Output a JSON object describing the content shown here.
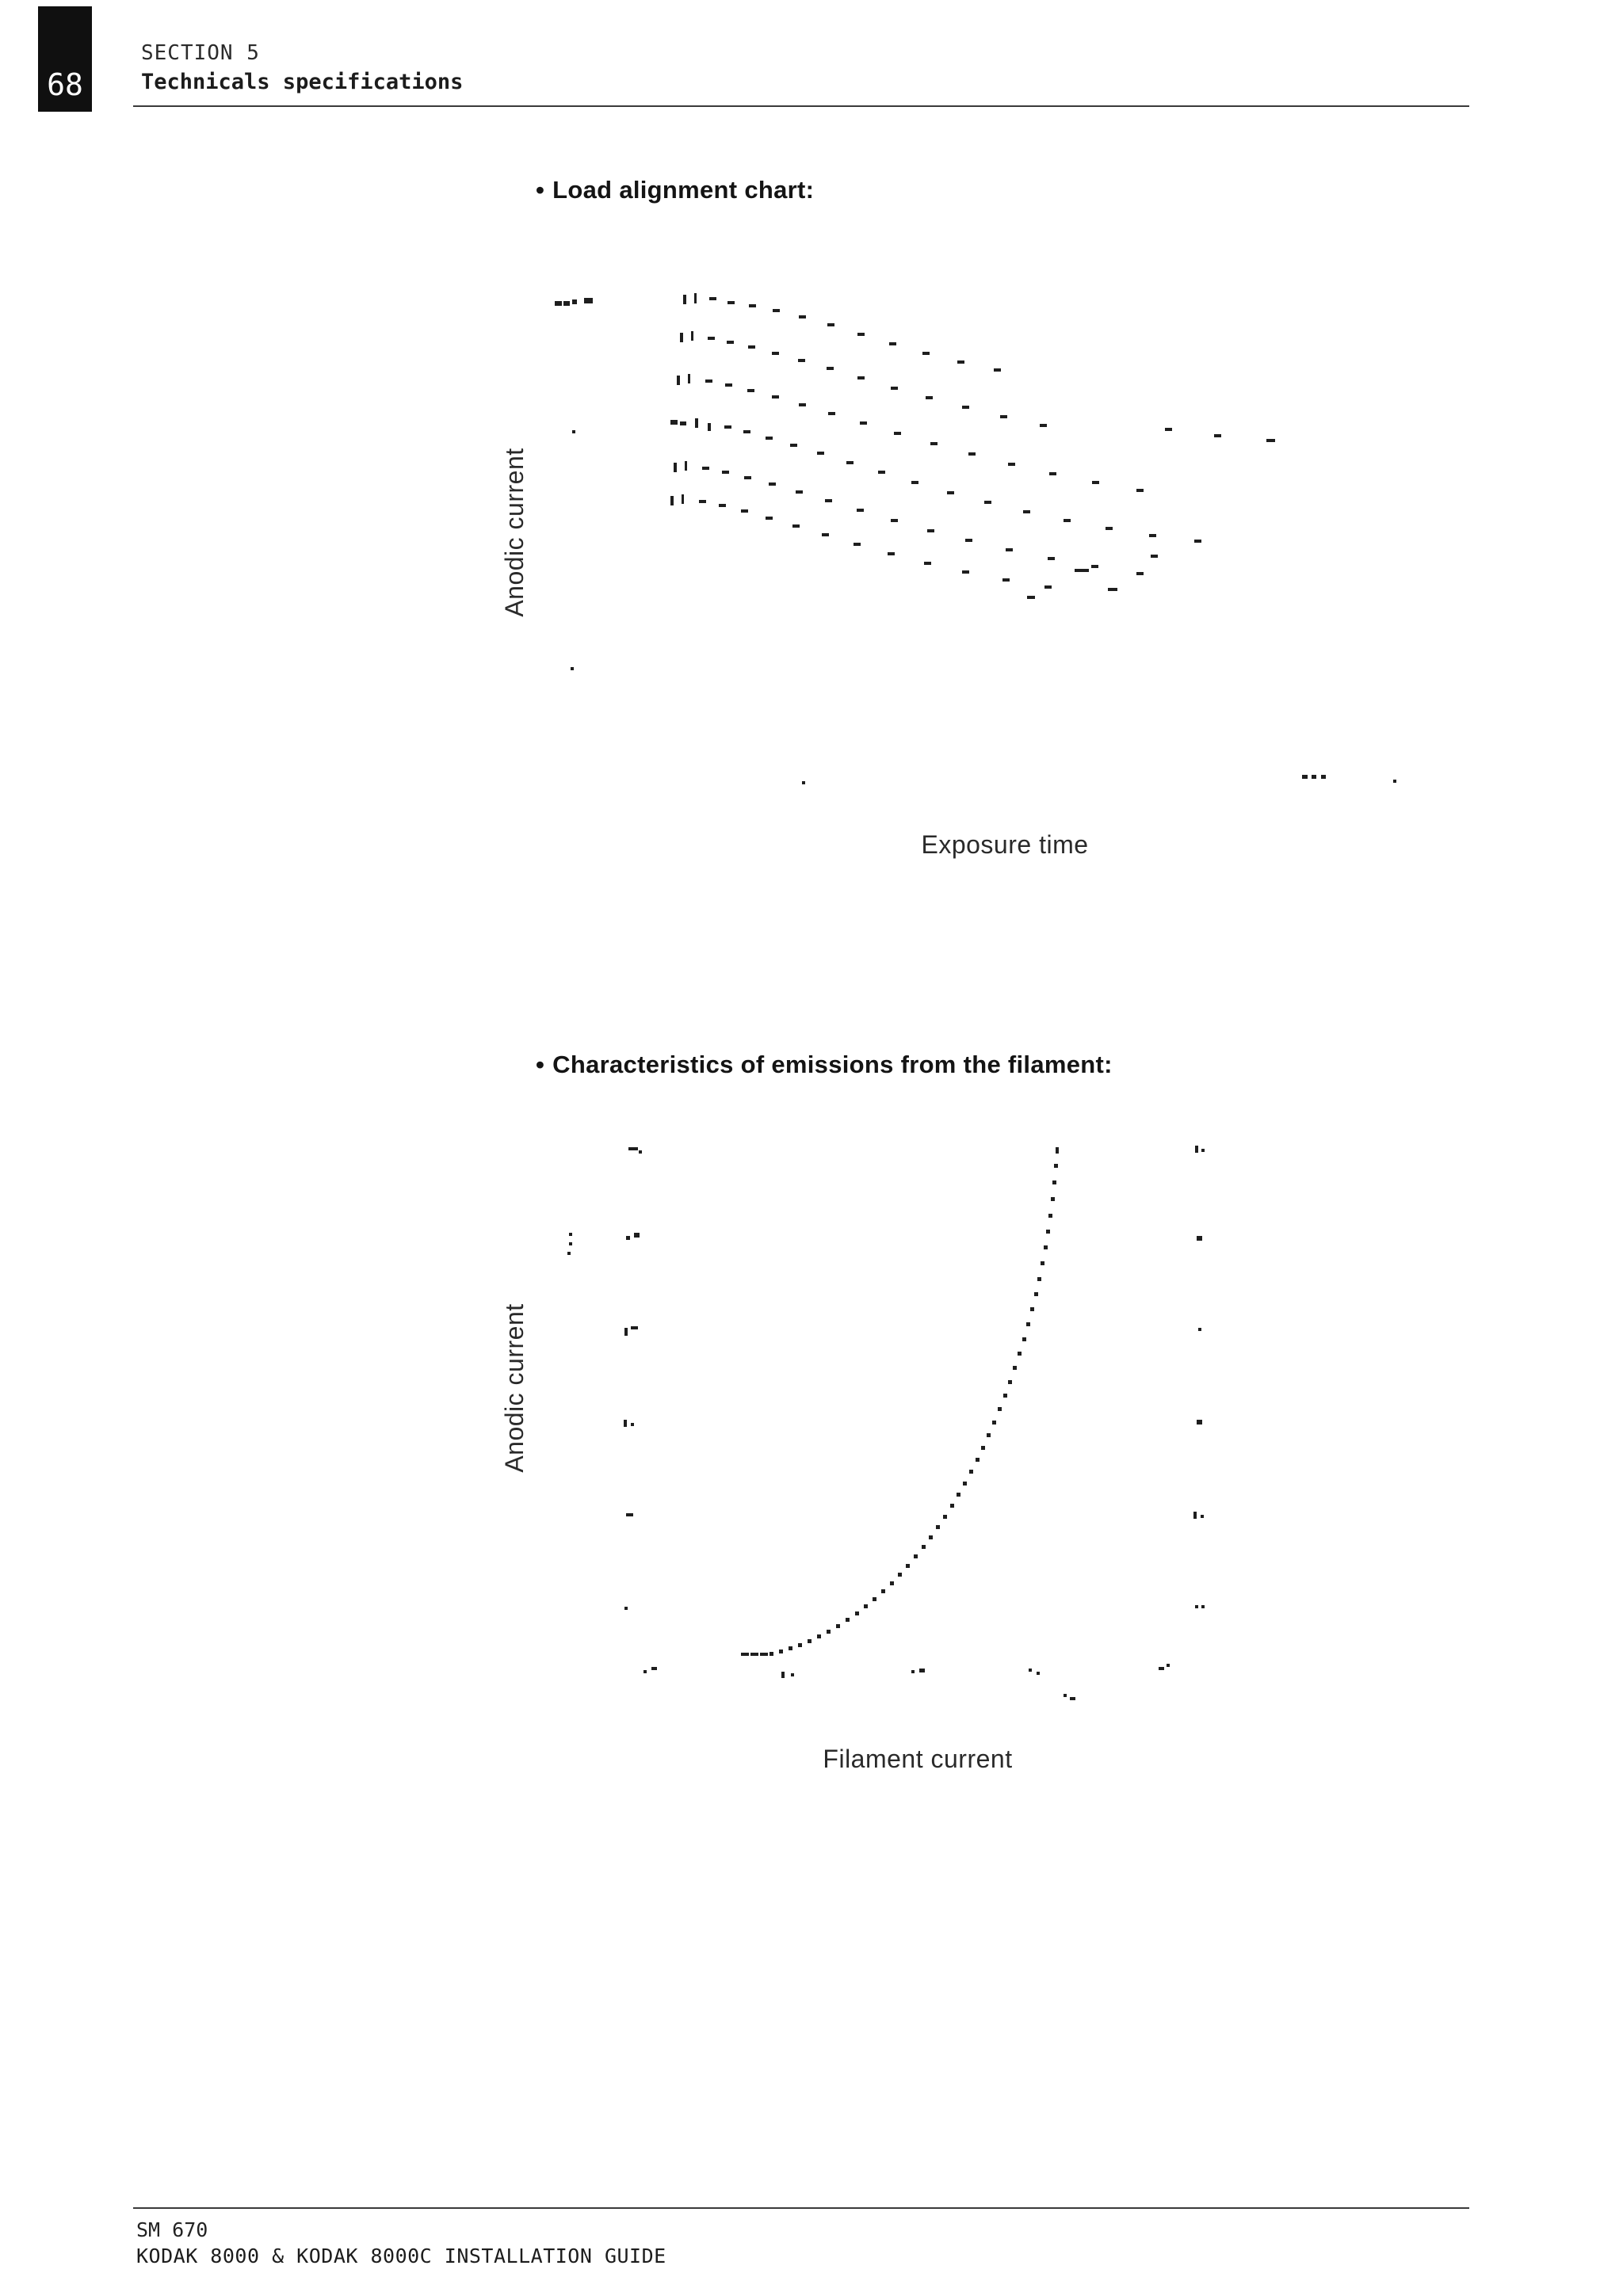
{
  "header": {
    "page_number": "68",
    "section": "SECTION 5",
    "subtitle": "Technicals specifications"
  },
  "glyphs": {
    "bullet": "•"
  },
  "bullets": {
    "chart1_label": "Load alignment chart:",
    "chart2_label": "Characteristics of emissions from the filament:"
  },
  "footer": {
    "code": "SM 670",
    "title": "KODAK 8000 & KODAK 8000C INSTALLATION GUIDE"
  },
  "chart_data": [
    {
      "type": "scatter",
      "title": "Load alignment chart",
      "xlabel": "Exposure time",
      "ylabel": "Anodic current",
      "note": "Degraded photocopy: family of descending tube-load curves, no readable tick labels",
      "coords": "page_px",
      "series": [
        {
          "name": "load-curve-1",
          "mark": [
            9,
            4
          ],
          "points": [
            [
              862,
              372,
              4,
              12
            ],
            [
              876,
              370,
              3,
              13
            ],
            [
              895,
              375
            ],
            [
              918,
              380
            ],
            [
              945,
              384
            ],
            [
              975,
              390
            ],
            [
              1008,
              398
            ],
            [
              1044,
              408
            ],
            [
              1082,
              420
            ],
            [
              1122,
              432
            ],
            [
              1164,
              444
            ],
            [
              1208,
              455
            ],
            [
              1254,
              465
            ]
          ]
        },
        {
          "name": "load-curve-2",
          "mark": [
            9,
            4
          ],
          "points": [
            [
              858,
              420,
              4,
              12
            ],
            [
              872,
              418,
              3,
              12
            ],
            [
              893,
              425
            ],
            [
              917,
              430
            ],
            [
              944,
              436
            ],
            [
              974,
              444
            ],
            [
              1007,
              453
            ],
            [
              1043,
              463
            ],
            [
              1082,
              475
            ],
            [
              1124,
              488
            ],
            [
              1168,
              500
            ],
            [
              1214,
              512
            ],
            [
              1262,
              524
            ],
            [
              1312,
              535
            ]
          ]
        },
        {
          "name": "load-curve-3",
          "mark": [
            9,
            4
          ],
          "points": [
            [
              854,
              474,
              4,
              12
            ],
            [
              868,
              472,
              3,
              12
            ],
            [
              890,
              479
            ],
            [
              915,
              484
            ],
            [
              943,
              491
            ],
            [
              974,
              499
            ],
            [
              1008,
              509
            ],
            [
              1045,
              520
            ],
            [
              1085,
              532
            ],
            [
              1128,
              545
            ],
            [
              1174,
              558
            ],
            [
              1222,
              571
            ],
            [
              1272,
              584
            ],
            [
              1324,
              596
            ],
            [
              1378,
              607
            ],
            [
              1434,
              617
            ]
          ]
        },
        {
          "name": "load-curve-4",
          "mark": [
            9,
            4
          ],
          "points": [
            [
              846,
              530,
              9,
              6
            ],
            [
              858,
              532,
              8,
              5
            ],
            [
              877,
              528,
              4,
              12
            ],
            [
              893,
              534,
              4,
              10
            ],
            [
              914,
              537
            ],
            [
              938,
              543
            ],
            [
              966,
              551
            ],
            [
              997,
              560
            ],
            [
              1031,
              570
            ],
            [
              1068,
              582
            ],
            [
              1108,
              594
            ],
            [
              1150,
              607
            ],
            [
              1195,
              620
            ],
            [
              1242,
              632
            ],
            [
              1291,
              644
            ],
            [
              1342,
              655
            ],
            [
              1395,
              665
            ],
            [
              1450,
              674
            ],
            [
              1507,
              681
            ]
          ]
        },
        {
          "name": "load-curve-5",
          "mark": [
            9,
            4
          ],
          "points": [
            [
              850,
              584,
              4,
              12
            ],
            [
              864,
              582,
              3,
              12
            ],
            [
              886,
              589
            ],
            [
              911,
              594
            ],
            [
              939,
              601
            ],
            [
              970,
              609
            ],
            [
              1004,
              619
            ],
            [
              1041,
              630
            ],
            [
              1081,
              642
            ],
            [
              1124,
              655
            ],
            [
              1170,
              668
            ],
            [
              1218,
              680
            ],
            [
              1269,
              692
            ],
            [
              1322,
              703
            ],
            [
              1377,
              713
            ],
            [
              1434,
              722
            ]
          ]
        },
        {
          "name": "load-curve-6",
          "mark": [
            9,
            4
          ],
          "points": [
            [
              846,
              626,
              4,
              12
            ],
            [
              860,
              624,
              3,
              12
            ],
            [
              882,
              631
            ],
            [
              907,
              636
            ],
            [
              935,
              643
            ],
            [
              966,
              652
            ],
            [
              1000,
              662
            ],
            [
              1037,
              673
            ],
            [
              1077,
              685
            ],
            [
              1120,
              697
            ],
            [
              1166,
              709
            ],
            [
              1214,
              720
            ],
            [
              1265,
              730
            ],
            [
              1318,
              739
            ]
          ]
        }
      ],
      "artifact_marks": [
        [
          700,
          380,
          9,
          6
        ],
        [
          711,
          380,
          8,
          6
        ],
        [
          722,
          378,
          6,
          6
        ],
        [
          737,
          376,
          11,
          7
        ],
        [
          722,
          543,
          4,
          4
        ],
        [
          720,
          842,
          4,
          4
        ],
        [
          1012,
          986,
          4,
          4
        ],
        [
          1643,
          978,
          7,
          5
        ],
        [
          1655,
          978,
          6,
          5
        ],
        [
          1667,
          978,
          6,
          5
        ],
        [
          1758,
          984,
          4,
          4
        ],
        [
          1470,
          540,
          9,
          4
        ],
        [
          1532,
          548,
          9,
          4
        ],
        [
          1598,
          554,
          11,
          4
        ],
        [
          1356,
          718,
          18,
          4
        ],
        [
          1398,
          742,
          12,
          4
        ],
        [
          1296,
          752,
          10,
          4
        ],
        [
          1452,
          700,
          9,
          4
        ]
      ]
    },
    {
      "type": "scatter",
      "title": "Characteristics of emissions from the filament",
      "xlabel": "Filament current",
      "ylabel": "Anodic current",
      "note": "Degraded photocopy: single exponential emission curve, axis tick remnants on left, right and bottom edges",
      "coords": "page_px",
      "series": [
        {
          "name": "emission-curve",
          "mark": [
            5,
            5
          ],
          "points": [
            [
              935,
              2086,
              10,
              4
            ],
            [
              947,
              2086,
              10,
              4
            ],
            [
              959,
              2086,
              10,
              4
            ],
            [
              971,
              2085
            ],
            [
              983,
              2082
            ],
            [
              995,
              2078
            ],
            [
              1007,
              2074
            ],
            [
              1019,
              2069
            ],
            [
              1031,
              2063
            ],
            [
              1043,
              2057
            ],
            [
              1055,
              2050
            ],
            [
              1067,
              2042
            ],
            [
              1079,
              2034
            ],
            [
              1090,
              2025
            ],
            [
              1101,
              2016
            ],
            [
              1112,
              2006
            ],
            [
              1123,
              1996
            ],
            [
              1133,
              1985
            ],
            [
              1143,
              1974
            ],
            [
              1153,
              1962
            ],
            [
              1163,
              1950
            ],
            [
              1172,
              1938
            ],
            [
              1181,
              1925
            ],
            [
              1190,
              1912
            ],
            [
              1199,
              1898
            ],
            [
              1207,
              1884
            ],
            [
              1215,
              1870
            ],
            [
              1223,
              1855
            ],
            [
              1231,
              1840
            ],
            [
              1238,
              1825
            ],
            [
              1245,
              1809
            ],
            [
              1252,
              1793
            ],
            [
              1259,
              1776
            ],
            [
              1266,
              1759
            ],
            [
              1272,
              1742
            ],
            [
              1278,
              1724
            ],
            [
              1284,
              1706
            ],
            [
              1290,
              1688
            ],
            [
              1295,
              1669
            ],
            [
              1300,
              1650
            ],
            [
              1305,
              1631
            ],
            [
              1309,
              1612
            ],
            [
              1313,
              1592
            ],
            [
              1317,
              1572
            ],
            [
              1320,
              1552
            ],
            [
              1323,
              1532
            ],
            [
              1326,
              1511
            ],
            [
              1328,
              1490
            ],
            [
              1330,
              1469
            ],
            [
              1332,
              1448,
              4,
              8
            ]
          ]
        }
      ],
      "axis_tick_marks_left": [
        [
          793,
          1448,
          12,
          4
        ],
        [
          806,
          1452,
          4,
          4
        ],
        [
          790,
          1560,
          5,
          5
        ],
        [
          800,
          1556,
          7,
          6
        ],
        [
          788,
          1676,
          4,
          10
        ],
        [
          796,
          1674,
          9,
          4
        ],
        [
          787,
          1792,
          4,
          9
        ],
        [
          796,
          1796,
          4,
          4
        ],
        [
          790,
          1910,
          9,
          4
        ],
        [
          788,
          2028,
          4,
          4
        ],
        [
          718,
          1556,
          4,
          4
        ],
        [
          718,
          1568,
          4,
          4
        ],
        [
          716,
          1580,
          4,
          4
        ]
      ],
      "axis_tick_marks_right": [
        [
          1508,
          1446,
          4,
          9
        ],
        [
          1516,
          1450,
          4,
          4
        ],
        [
          1510,
          1560,
          7,
          6
        ],
        [
          1512,
          1676,
          4,
          4
        ],
        [
          1510,
          1792,
          7,
          6
        ],
        [
          1506,
          1908,
          4,
          9
        ],
        [
          1515,
          1912,
          4,
          4
        ],
        [
          1508,
          2026,
          4,
          4
        ],
        [
          1516,
          2026,
          4,
          4
        ]
      ],
      "axis_tick_marks_bottom": [
        [
          812,
          2108,
          4,
          4
        ],
        [
          822,
          2104,
          7,
          4
        ],
        [
          986,
          2110,
          4,
          8
        ],
        [
          998,
          2112,
          4,
          4
        ],
        [
          1150,
          2108,
          4,
          4
        ],
        [
          1160,
          2106,
          7,
          5
        ],
        [
          1298,
          2106,
          4,
          4
        ],
        [
          1308,
          2110,
          4,
          4
        ],
        [
          1462,
          2104,
          7,
          4
        ],
        [
          1472,
          2100,
          4,
          4
        ],
        [
          1342,
          2138,
          4,
          4
        ],
        [
          1350,
          2142,
          7,
          4
        ]
      ]
    }
  ]
}
